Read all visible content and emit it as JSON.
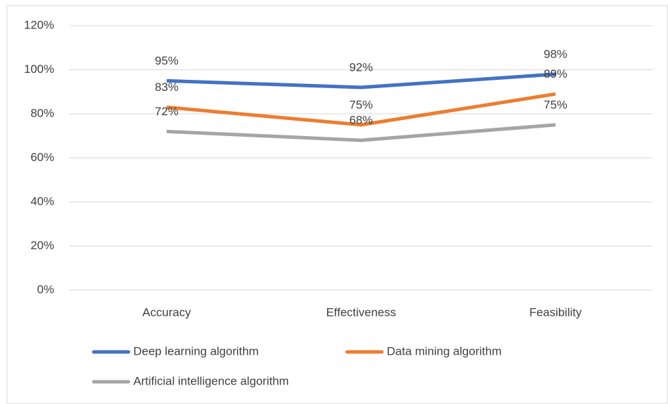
{
  "chart_data": {
    "type": "line",
    "categories": [
      "Accuracy",
      "Effectiveness",
      "Feasibility"
    ],
    "series": [
      {
        "name": "Deep learning algorithm",
        "color": "#4472c4",
        "values": [
          95,
          92,
          98
        ],
        "value_labels": [
          "95%",
          "92%",
          "98%"
        ]
      },
      {
        "name": "Data mining algorithm",
        "color": "#ed7d31",
        "values": [
          83,
          75,
          89
        ],
        "value_labels": [
          "83%",
          "75%",
          "89%"
        ]
      },
      {
        "name": "Artificial intelligence algorithm",
        "color": "#a5a5a5",
        "values": [
          72,
          68,
          75
        ],
        "value_labels": [
          "72%",
          "68%",
          "75%"
        ]
      }
    ],
    "ylim": [
      0,
      120
    ],
    "yticks": [
      {
        "value": 0,
        "label": "0%"
      },
      {
        "value": 20,
        "label": "20%"
      },
      {
        "value": 40,
        "label": "40%"
      },
      {
        "value": 60,
        "label": "60%"
      },
      {
        "value": 80,
        "label": "80%"
      },
      {
        "value": 100,
        "label": "100%"
      },
      {
        "value": 120,
        "label": "120%"
      }
    ],
    "grid": true,
    "legend": "bottom"
  }
}
